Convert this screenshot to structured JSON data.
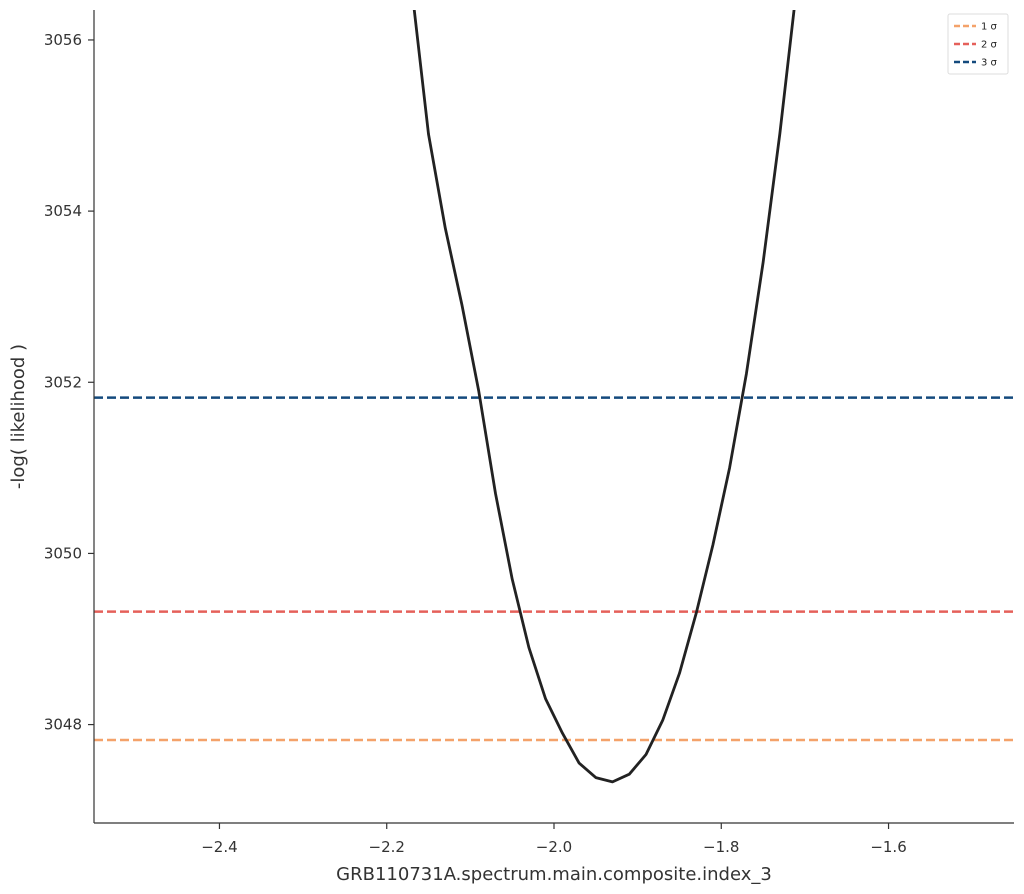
{
  "chart_data": {
    "type": "line",
    "xlabel": "GRB110731A.spectrum.main.composite.index_3",
    "ylabel": "-log( likelihood )",
    "xlim": [
      -2.55,
      -1.45
    ],
    "ylim": [
      3046.85,
      3056.35
    ],
    "xticks": [
      -2.4,
      -2.2,
      -2.0,
      -1.8,
      -1.6
    ],
    "xtick_labels": [
      "−2.4",
      "−2.2",
      "−2.0",
      "−1.8",
      "−1.6"
    ],
    "yticks": [
      3048,
      3050,
      3052,
      3054,
      3056
    ],
    "ytick_labels": [
      "3048",
      "3050",
      "3052",
      "3054",
      "3056"
    ],
    "grid": false,
    "legend_position": "top-right",
    "series": [
      {
        "x": [
          -2.17,
          -2.15,
          -2.13,
          -2.11,
          -2.09,
          -2.07,
          -2.05,
          -2.03,
          -2.01,
          -1.99,
          -1.97,
          -1.95,
          -1.93,
          -1.91,
          -1.89,
          -1.87,
          -1.85,
          -1.83,
          -1.81,
          -1.79,
          -1.77,
          -1.75,
          -1.73,
          -1.71
        ],
        "y": [
          3056.6,
          3054.9,
          3053.8,
          3052.9,
          3051.9,
          3050.7,
          3049.7,
          3048.9,
          3048.3,
          3047.9,
          3047.55,
          3047.38,
          3047.33,
          3047.42,
          3047.65,
          3048.05,
          3048.6,
          3049.3,
          3050.1,
          3051.0,
          3052.1,
          3053.4,
          3054.9,
          3056.6
        ],
        "color": "#222222"
      }
    ],
    "hlines": [
      {
        "label": "1 σ",
        "y": 3047.82,
        "color": "#f4a26a"
      },
      {
        "label": "2 σ",
        "y": 3049.32,
        "color": "#e5605a"
      },
      {
        "label": "3 σ",
        "y": 3051.82,
        "color": "#144a7d"
      }
    ]
  }
}
